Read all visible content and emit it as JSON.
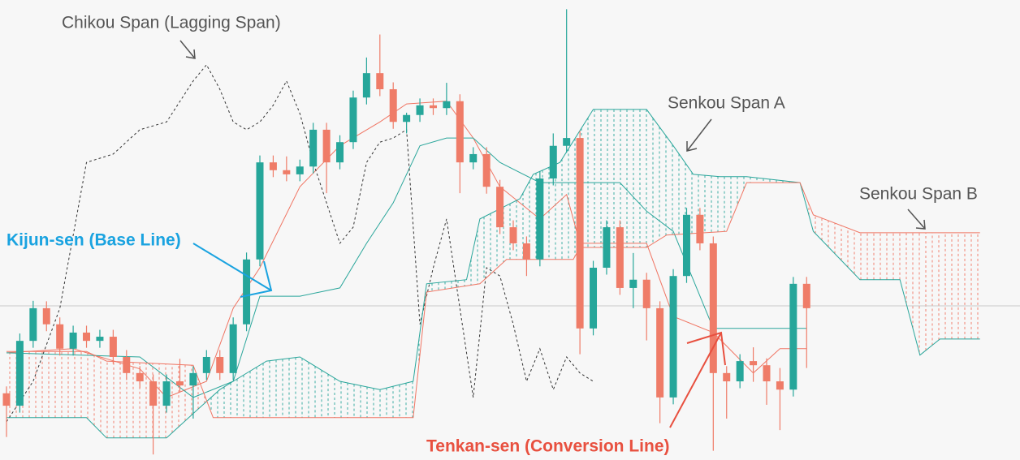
{
  "chart_data": {
    "type": "candlestick",
    "xlim": [
      0,
      76
    ],
    "ylim": [
      0,
      100
    ],
    "current_price": 33.5,
    "candles": {
      "color_up": "#26a69a",
      "color_down": "#ef7c68",
      "open": [
        14.5,
        11.8,
        25.9,
        33.0,
        29.5,
        24.2,
        27.7,
        25.9,
        26.8,
        22.4,
        18.9,
        17.1,
        11.8,
        17.1,
        16.2,
        18.9,
        22.4,
        18.9,
        29.5,
        43.6,
        64.7,
        63.0,
        62.1,
        63.8,
        71.8,
        64.7,
        69.1,
        78.8,
        84.1,
        80.6,
        73.5,
        75.0,
        77.1,
        76.5,
        78.0,
        64.7,
        66.5,
        59.4,
        50.6,
        47.1,
        43.6,
        61.2,
        68.3,
        70.0,
        28.6,
        41.8,
        50.6,
        37.4,
        39.2,
        33.0,
        13.6,
        40.0,
        53.3,
        47.1,
        18.9,
        17.1,
        21.5,
        20.6,
        17.1,
        15.3,
        38.3
      ],
      "high": [
        16.0,
        27.5,
        34.6,
        34.5,
        31.0,
        29.2,
        29.2,
        28.3,
        28.3,
        23.9,
        20.4,
        18.6,
        18.6,
        22.0,
        20.4,
        23.9,
        23.9,
        31.0,
        45.1,
        66.2,
        66.2,
        66.0,
        65.3,
        73.3,
        73.3,
        70.6,
        80.3,
        87.5,
        92.5,
        82.1,
        75.5,
        78.6,
        78.6,
        82.0,
        79.5,
        68.0,
        68.0,
        60.9,
        52.1,
        48.6,
        62.7,
        71.0,
        98.0,
        71.5,
        43.3,
        52.1,
        52.1,
        45.0,
        40.7,
        34.5,
        41.5,
        54.8,
        54.8,
        48.6,
        20.4,
        23.0,
        24.5,
        22.1,
        20.0,
        39.8,
        39.8
      ],
      "low": [
        5.0,
        10.3,
        24.4,
        28.0,
        22.7,
        22.7,
        24.4,
        24.4,
        20.9,
        17.4,
        15.6,
        1.2,
        10.3,
        14.7,
        9.0,
        17.4,
        17.4,
        17.4,
        28.0,
        42.1,
        61.5,
        60.6,
        60.6,
        62.3,
        58.0,
        63.2,
        67.6,
        77.3,
        79.1,
        72.0,
        71.0,
        73.5,
        75.0,
        75.0,
        58.0,
        63.2,
        57.9,
        49.1,
        45.6,
        40.0,
        42.1,
        59.7,
        66.8,
        23.0,
        27.1,
        40.3,
        35.9,
        33.0,
        26.0,
        8.0,
        12.1,
        38.5,
        45.6,
        2.0,
        9.0,
        15.6,
        17.0,
        12.0,
        6.5,
        13.8,
        20.0
      ],
      "close": [
        11.8,
        25.9,
        33.0,
        29.5,
        24.2,
        27.7,
        25.9,
        26.8,
        22.4,
        18.9,
        17.1,
        11.8,
        17.1,
        16.2,
        18.9,
        22.4,
        18.9,
        29.5,
        43.6,
        64.7,
        63.0,
        62.1,
        63.8,
        71.8,
        64.7,
        69.1,
        78.8,
        84.1,
        80.6,
        73.5,
        75.0,
        77.1,
        76.5,
        78.0,
        64.7,
        66.5,
        59.4,
        50.6,
        47.1,
        43.6,
        61.2,
        68.3,
        70.0,
        28.6,
        41.8,
        50.6,
        37.4,
        39.2,
        33.0,
        13.6,
        40.0,
        53.3,
        47.1,
        18.9,
        17.1,
        21.5,
        20.6,
        17.1,
        15.3,
        38.3,
        33.0
      ]
    },
    "cloud_colors": {
      "up": "#2aa69b",
      "down": "#f07563"
    },
    "series": [
      {
        "label": "Tenkan-sen (Conversion Line)",
        "label_color": "#e8503f",
        "color": "#f07563",
        "dashed": false,
        "x": [
          0,
          5,
          10,
          12,
          15,
          17,
          19,
          22,
          25,
          28,
          30,
          33,
          35,
          37,
          40,
          42,
          43,
          45,
          48,
          50,
          53,
          56,
          58,
          60
        ],
        "values": [
          23.3,
          24.2,
          19.8,
          13.6,
          17.1,
          33.0,
          41.8,
          59.4,
          68.3,
          73.5,
          77.4,
          78.0,
          70.0,
          59.4,
          52.4,
          57.7,
          47.1,
          47.1,
          47.1,
          31.2,
          27.7,
          18.9,
          24.2,
          24.2
        ]
      },
      {
        "label": "Kijun-sen (Base Line)",
        "label_color": "#1aa3e0",
        "color": "#2aa69b",
        "dashed": false,
        "x": [
          0,
          10,
          14,
          17,
          19,
          22,
          25,
          27,
          29,
          31,
          33,
          35,
          37,
          40,
          43,
          46,
          48,
          50,
          53,
          56,
          58,
          60
        ],
        "values": [
          23.3,
          22.4,
          13.6,
          17.1,
          35.6,
          35.6,
          37.4,
          47.1,
          55.9,
          68.3,
          70.0,
          70.0,
          64.7,
          60.3,
          60.3,
          60.3,
          54.1,
          49.7,
          28.6,
          28.6,
          28.6,
          28.6
        ]
      },
      {
        "label": "Chikou Span (Lagging Span)",
        "label_color": "#555555",
        "color": "#333333",
        "dashed": true,
        "x": [
          0,
          2,
          4,
          6,
          8,
          10,
          12,
          14,
          15,
          16,
          17,
          18,
          19,
          20,
          21,
          22,
          23,
          25,
          26,
          27,
          28,
          29,
          30,
          31,
          32,
          33,
          34,
          35,
          36,
          37,
          38,
          39,
          40,
          41,
          42,
          43,
          44
        ],
        "values": [
          8.3,
          17.1,
          33.0,
          64.7,
          66.5,
          71.8,
          73.5,
          82.4,
          85.9,
          80.6,
          73.5,
          71.8,
          73.5,
          77.1,
          82.4,
          75.3,
          64.7,
          47.1,
          50.6,
          64.7,
          69.1,
          70.0,
          71.8,
          29.5,
          41.8,
          52.4,
          33.0,
          13.6,
          41.8,
          40.0,
          29.5,
          17.1,
          24.2,
          15.3,
          22.4,
          18.9,
          17.1
        ]
      },
      {
        "label": "Senkou Span A",
        "label_color": "#555555",
        "color": "#2aa69b",
        "dashed": false,
        "x": [
          0,
          6,
          7.5,
          12,
          14,
          16,
          17,
          19.5,
          22,
          25,
          28,
          30.5,
          31.5,
          34.5,
          35.5,
          38.5,
          39.5,
          41.5,
          44,
          48,
          50,
          51.5,
          53.5,
          55.5,
          59.5,
          60.5,
          64,
          67,
          68.5,
          70,
          73
        ],
        "values": [
          9.2,
          9.2,
          4.8,
          4.8,
          10.1,
          15.3,
          17.1,
          21.5,
          22.4,
          17.1,
          15.3,
          17.1,
          38.3,
          39.2,
          52.4,
          56.8,
          62.1,
          64.7,
          76.2,
          76.2,
          68.3,
          62.1,
          61.6,
          61.6,
          60.3,
          49.7,
          39.2,
          39.2,
          22.8,
          26.3,
          26.3
        ]
      },
      {
        "label": "Senkou Span B",
        "label_color": "#555555",
        "color": "#f07563",
        "dashed": false,
        "x": [
          0,
          6,
          7.5,
          14,
          15.5,
          30.5,
          31.5,
          35.5,
          37.5,
          42.5,
          43,
          48,
          49.5,
          54,
          55.5,
          59.5,
          60.5,
          64,
          73
        ],
        "values": [
          23.6,
          23.6,
          21.5,
          20.6,
          9.2,
          9.2,
          36.5,
          38.3,
          43.6,
          43.6,
          46.2,
          46.2,
          48.9,
          49.7,
          60.3,
          60.3,
          53.3,
          49.4,
          49.4
        ]
      }
    ]
  }
}
